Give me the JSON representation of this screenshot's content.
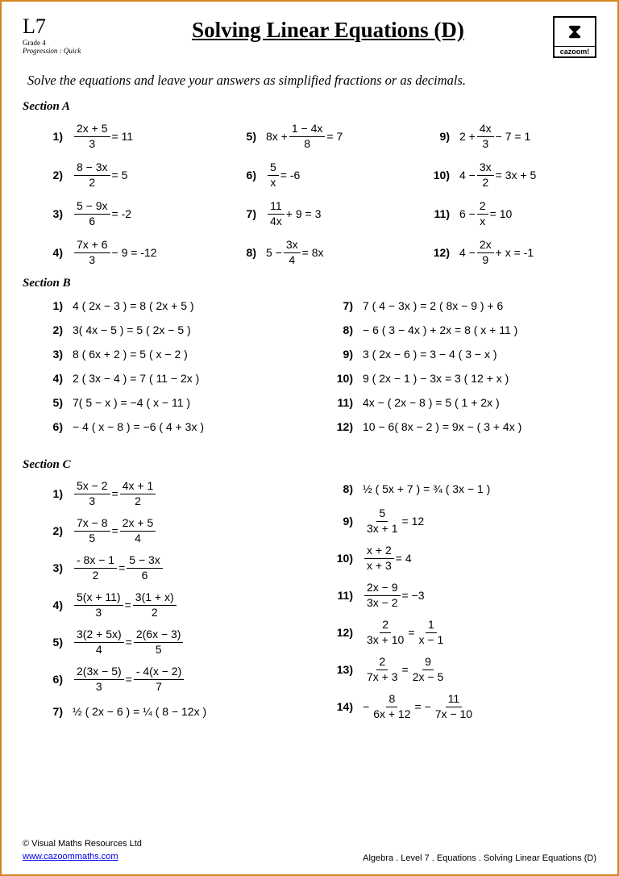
{
  "header": {
    "level": "L7",
    "grade": "Grade 4",
    "progression": "Progression : Quick",
    "title": "Solving Linear Equations (D)",
    "logo_text": "cazoom!"
  },
  "instruction": "Solve the equations and leave your answers as simplified fractions or as decimals.",
  "sectionA": {
    "title": "Section  A",
    "cols": [
      [
        {
          "n": "1)",
          "num": "2x + 5",
          "den": "3",
          "after": " = 11"
        },
        {
          "n": "2)",
          "num": "8 − 3x",
          "den": "2",
          "after": " = 5"
        },
        {
          "n": "3)",
          "num": "5 − 9x",
          "den": "6",
          "after": " = -2"
        },
        {
          "n": "4)",
          "num": "7x + 6",
          "den": "3",
          "after": " − 9 = -12"
        }
      ],
      [
        {
          "n": "5)",
          "before": "8x + ",
          "num": "1 − 4x",
          "den": "8",
          "after": " = 7"
        },
        {
          "n": "6)",
          "num": "5",
          "den": "x",
          "after": " = -6"
        },
        {
          "n": "7)",
          "num": "11",
          "den": "4x",
          "after": " + 9 = 3"
        },
        {
          "n": "8)",
          "before": "5 − ",
          "num": "3x",
          "den": "4",
          "after": " = 8x"
        }
      ],
      [
        {
          "n": "9)",
          "before": "2 + ",
          "num": "4x",
          "den": "3",
          "after": " − 7 = 1"
        },
        {
          "n": "10)",
          "before": "4 − ",
          "num": "3x",
          "den": "2",
          "after": " = 3x + 5"
        },
        {
          "n": "11)",
          "before": "6 − ",
          "num": "2",
          "den": "x",
          "after": " = 10"
        },
        {
          "n": "12)",
          "before": "4 − ",
          "num": "2x",
          "den": "9",
          "after": " + x = -1"
        }
      ]
    ]
  },
  "sectionB": {
    "title": "Section  B",
    "cols": [
      [
        {
          "n": "1)",
          "text": "4 ( 2x − 3 ) = 8 ( 2x + 5 )"
        },
        {
          "n": "2)",
          "text": "3( 4x − 5 ) = 5 ( 2x − 5 )"
        },
        {
          "n": "3)",
          "text": "8 ( 6x + 2 ) = 5 ( x − 2 )"
        },
        {
          "n": "4)",
          "text": "2 ( 3x − 4 ) = 7 ( 11 − 2x )"
        },
        {
          "n": "5)",
          "text": "7( 5 − x ) = −4 ( x − 11 )"
        },
        {
          "n": "6)",
          "text": "− 4 ( x − 8 ) = −6 ( 4 + 3x )"
        }
      ],
      [
        {
          "n": "7)",
          "text": "7 ( 4 − 3x ) = 2 ( 8x − 9 ) + 6"
        },
        {
          "n": "8)",
          "text": "− 6 ( 3 − 4x ) + 2x = 8 ( x + 11 )"
        },
        {
          "n": "9)",
          "text": "3 ( 2x − 6 ) = 3 − 4 ( 3 − x )"
        },
        {
          "n": "10)",
          "text": "9 ( 2x − 1 ) − 3x = 3 ( 12 + x )"
        },
        {
          "n": "11)",
          "text": "4x − ( 2x − 8 ) = 5 ( 1 + 2x )"
        },
        {
          "n": "12)",
          "text": "10 − 6( 8x − 2 ) = 9x − ( 3 + 4x )"
        }
      ]
    ]
  },
  "sectionC": {
    "title": "Section  C",
    "cols": [
      [
        {
          "n": "1)",
          "lnum": "5x − 2",
          "lden": "3",
          "rnum": "4x + 1",
          "rden": "2",
          "type": "ff"
        },
        {
          "n": "2)",
          "lnum": "7x − 8",
          "lden": "5",
          "rnum": "2x + 5",
          "rden": "4",
          "type": "ff"
        },
        {
          "n": "3)",
          "lnum": "- 8x − 1",
          "lden": "2",
          "rnum": "5 − 3x",
          "rden": "6",
          "type": "ff"
        },
        {
          "n": "4)",
          "lnum": "5(x + 11)",
          "lden": "3",
          "rnum": "3(1 + x)",
          "rden": "2",
          "type": "ff"
        },
        {
          "n": "5)",
          "lnum": "3(2 + 5x)",
          "lden": "4",
          "rnum": "2(6x − 3)",
          "rden": "5",
          "type": "ff"
        },
        {
          "n": "6)",
          "lnum": "2(3x − 5)",
          "lden": "3",
          "rnum": "- 4(x − 2)",
          "rden": "7",
          "type": "ff"
        },
        {
          "n": "7)",
          "text": "½ ( 2x − 6 ) = ¼ ( 8 − 12x )",
          "type": "text"
        }
      ],
      [
        {
          "n": "8)",
          "text": "½ ( 5x + 7 ) = ¾ ( 3x − 1 )",
          "type": "text"
        },
        {
          "n": "9)",
          "lnum": "5",
          "lden": "3x + 1",
          "rhs": "12",
          "type": "fe"
        },
        {
          "n": "10)",
          "lnum": "x + 2",
          "lden": "x + 3",
          "rhs": "4",
          "type": "fe"
        },
        {
          "n": "11)",
          "lnum": "2x − 9",
          "lden": "3x − 2",
          "rhs": "−3",
          "type": "fe"
        },
        {
          "n": "12)",
          "lnum": "2",
          "lden": "3x + 10",
          "rnum": "1",
          "rden": "x − 1",
          "type": "ff"
        },
        {
          "n": "13)",
          "lnum": "2",
          "lden": "7x + 3",
          "rnum": "9",
          "rden": "2x − 5",
          "type": "ff"
        },
        {
          "n": "14)",
          "before": "− ",
          "lnum": "8",
          "lden": "6x + 12",
          "mid": " = − ",
          "rnum": "11",
          "rden": "7x − 10",
          "type": "ffneg"
        }
      ]
    ]
  },
  "footer": {
    "copyright": "© Visual Maths Resources Ltd",
    "url": "www.cazoommaths.com",
    "breadcrumb": "Algebra    .   Level  7   .   Equations    .    Solving Linear Equations (D)"
  }
}
